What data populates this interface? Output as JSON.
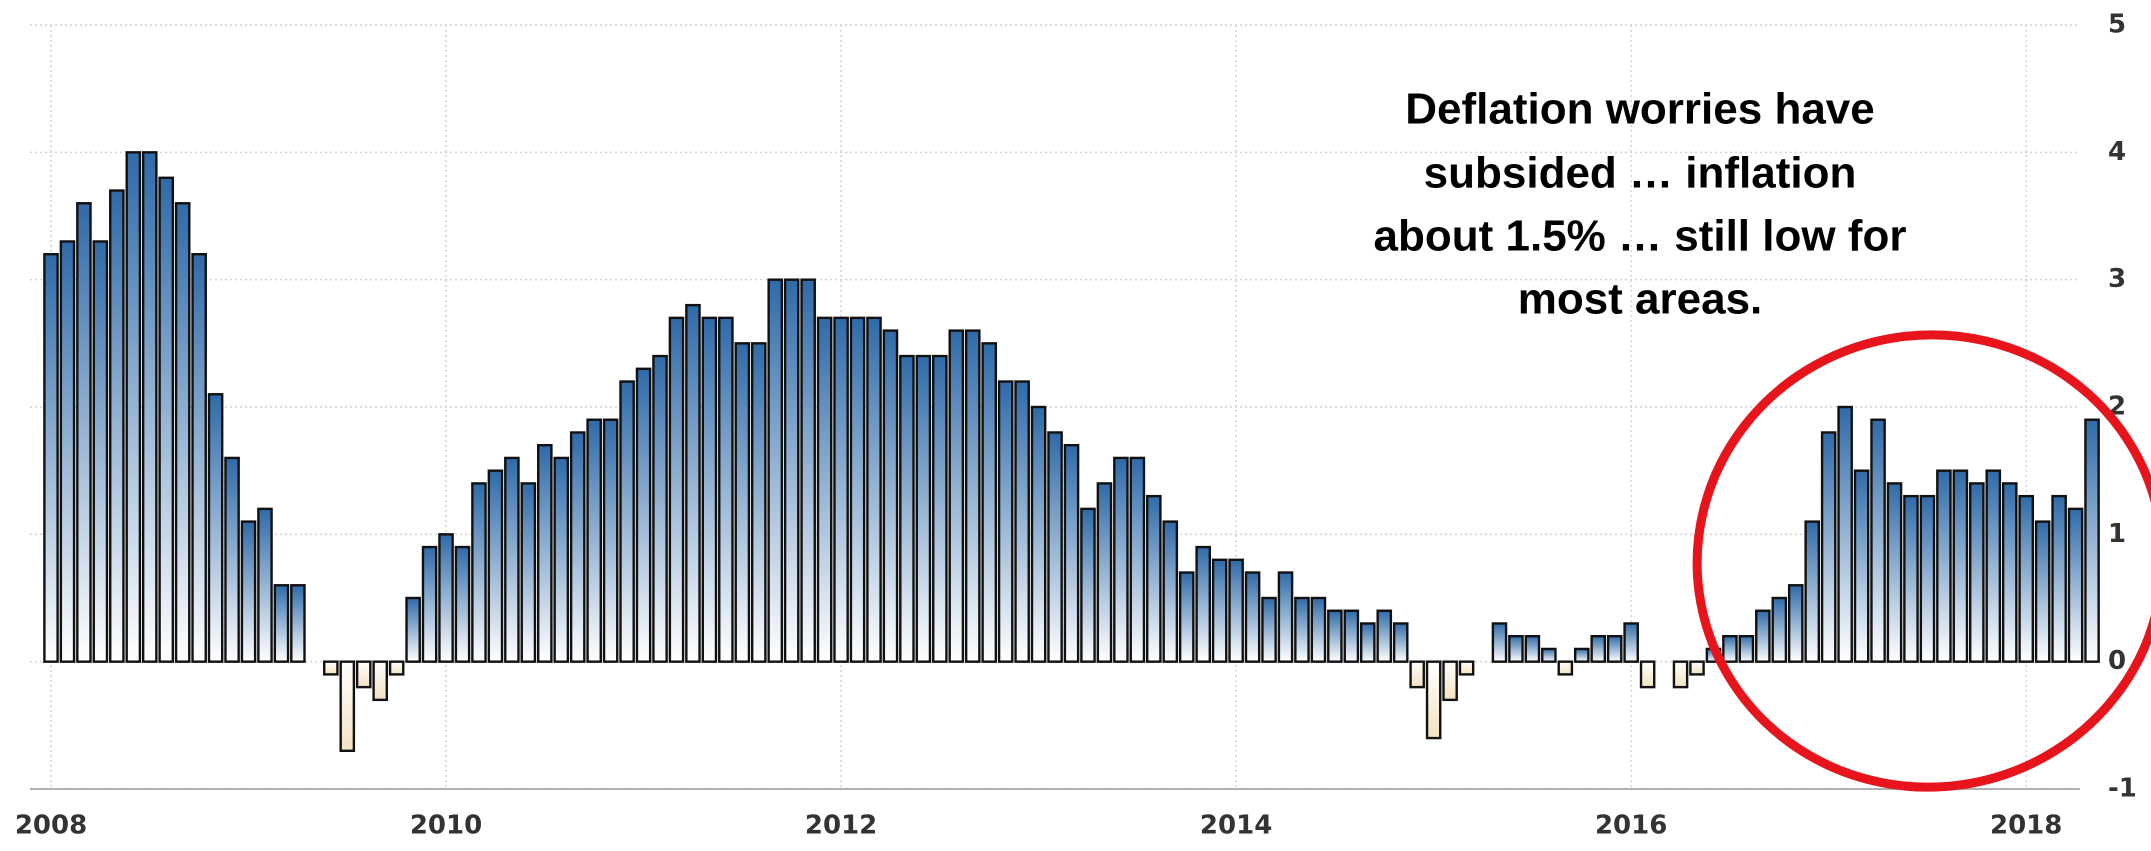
{
  "chart_data": {
    "type": "bar",
    "annotation": [
      "Deflation worries have",
      "subsided … inflation",
      "about 1.5% … still low for",
      "most areas."
    ],
    "categories": [
      "2008",
      null,
      null,
      null,
      null,
      null,
      null,
      null,
      null,
      null,
      null,
      null,
      null,
      null,
      null,
      null,
      null,
      null,
      null,
      null,
      null,
      null,
      null,
      null,
      "2010",
      null,
      null,
      null,
      null,
      null,
      null,
      null,
      null,
      null,
      null,
      null,
      null,
      null,
      null,
      null,
      null,
      null,
      null,
      null,
      null,
      null,
      null,
      null,
      "2012",
      null,
      null,
      null,
      null,
      null,
      null,
      null,
      null,
      null,
      null,
      null,
      null,
      null,
      null,
      null,
      null,
      null,
      null,
      null,
      null,
      null,
      null,
      null,
      "2014",
      null,
      null,
      null,
      null,
      null,
      null,
      null,
      null,
      null,
      null,
      null,
      null,
      null,
      null,
      null,
      null,
      null,
      null,
      null,
      null,
      null,
      null,
      null,
      "2016",
      null,
      null,
      null,
      null,
      null,
      null,
      null,
      null,
      null,
      null,
      null,
      null,
      null,
      null,
      null,
      null,
      null,
      null,
      null,
      null,
      null,
      null,
      null,
      "2018",
      null,
      null,
      null,
      null
    ],
    "values": [
      3.2,
      3.3,
      3.6,
      3.3,
      3.7,
      4.0,
      4.0,
      3.8,
      3.6,
      3.2,
      2.1,
      1.6,
      1.1,
      1.2,
      0.6,
      0.6,
      0.0,
      -0.1,
      -0.7,
      -0.2,
      -0.3,
      -0.1,
      0.5,
      0.9,
      1.0,
      0.9,
      1.4,
      1.5,
      1.6,
      1.4,
      1.7,
      1.6,
      1.8,
      1.9,
      1.9,
      2.2,
      2.3,
      2.4,
      2.7,
      2.8,
      2.7,
      2.7,
      2.5,
      2.5,
      3.0,
      3.0,
      3.0,
      2.7,
      2.7,
      2.7,
      2.7,
      2.6,
      2.4,
      2.4,
      2.4,
      2.6,
      2.6,
      2.5,
      2.2,
      2.2,
      2.0,
      1.8,
      1.7,
      1.2,
      1.4,
      1.6,
      1.6,
      1.3,
      1.1,
      0.7,
      0.9,
      0.8,
      0.8,
      0.7,
      0.5,
      0.7,
      0.5,
      0.5,
      0.4,
      0.4,
      0.3,
      0.4,
      0.3,
      -0.2,
      -0.6,
      -0.3,
      -0.1,
      0.0,
      0.3,
      0.2,
      0.2,
      0.1,
      -0.1,
      0.1,
      0.2,
      0.2,
      0.3,
      -0.2,
      0.0,
      -0.2,
      -0.1,
      0.1,
      0.2,
      0.2,
      0.4,
      0.5,
      0.6,
      1.1,
      1.8,
      2.0,
      1.5,
      1.9,
      1.4,
      1.3,
      1.3,
      1.5,
      1.5,
      1.4,
      1.5,
      1.4,
      1.3,
      1.1,
      1.3,
      1.2,
      1.9
    ],
    "color": "#2f6aa8",
    "negative_color": "#f3e2c2",
    "ylim": [
      -1,
      5
    ],
    "yticks": [
      -1,
      0,
      1,
      2,
      3,
      4,
      5
    ],
    "grid": true
  }
}
